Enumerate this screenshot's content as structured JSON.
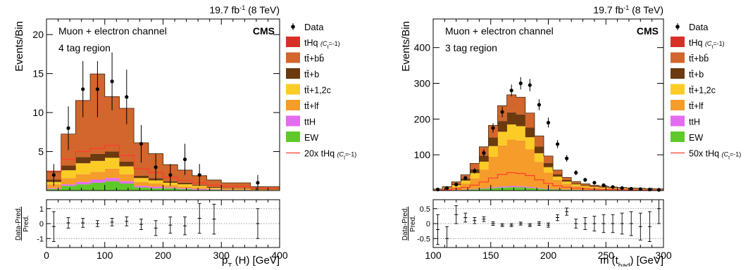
{
  "colors": {
    "tHq": "#d73027",
    "ttbb": "#d2662c",
    "ttb": "#6b3a10",
    "ttc": "#fbcc25",
    "ttlf": "#f59c2a",
    "ttH": "#e46cf1",
    "EW": "#5fc92a",
    "signal_line": "#ff3b2f",
    "data": "#000000"
  },
  "chart_data": [
    {
      "type": "area",
      "subtype": "stacked-histogram",
      "lumi_label": "19.7 fb",
      "lumi_sup": "-1",
      "lumi_energy": " (8 TeV)",
      "channel": "Muon + electron channel",
      "region": "4 tag region",
      "experiment": "CMS",
      "ylabel": "Events/Bin",
      "xlabel_main": "p",
      "xlabel_sub": "T",
      "xlabel_rest": " (H) [GeV]",
      "ratio_ylabel_num": "Data-Pred.",
      "ratio_ylabel_den": "Pred.",
      "xlim": [
        0,
        400
      ],
      "ylim": [
        0,
        22
      ],
      "ratio_ylim": [
        -1.6,
        1.6
      ],
      "xticks": [
        "0",
        "100",
        "200",
        "300",
        "400"
      ],
      "yticks": [
        "5",
        "10",
        "15",
        "20"
      ],
      "ratio_yticks": [
        "-1",
        "0",
        "1"
      ],
      "bin_edges": [
        0,
        25,
        50,
        75,
        100,
        125,
        150,
        175,
        200,
        225,
        250,
        275,
        300,
        350,
        400
      ],
      "series": [
        {
          "name": "EW",
          "key": "EW",
          "values": [
            0.2,
            0.6,
            0.8,
            1.0,
            1.2,
            0.9,
            0.4,
            0.3,
            0.3,
            0.2,
            0.1,
            0.1,
            0.05,
            0.03
          ]
        },
        {
          "name": "ttH",
          "key": "ttH",
          "values": [
            0.1,
            0.2,
            0.3,
            0.4,
            0.4,
            0.3,
            0.2,
            0.2,
            0.1,
            0.1,
            0.1,
            0.05,
            0.03,
            0.02
          ]
        },
        {
          "name": "tt̄+lf",
          "key": "ttlf",
          "values": [
            0.5,
            0.8,
            1.0,
            1.0,
            1.2,
            0.9,
            0.5,
            0.4,
            0.3,
            0.2,
            0.2,
            0.1,
            0.05,
            0.03
          ]
        },
        {
          "name": "tt̄+1,2c",
          "key": "ttc",
          "values": [
            0.3,
            1.0,
            1.4,
            1.4,
            1.4,
            1.0,
            0.5,
            0.4,
            0.3,
            0.3,
            0.2,
            0.1,
            0.1,
            0.05
          ]
        },
        {
          "name": "tt̄+b",
          "key": "ttb",
          "values": [
            0.3,
            0.6,
            0.8,
            0.9,
            0.8,
            0.6,
            0.3,
            0.3,
            0.2,
            0.2,
            0.1,
            0.1,
            0.05,
            0.05
          ]
        },
        {
          "name": "tt̄+bb̄",
          "key": "ttbb",
          "values": [
            1.0,
            4.0,
            7.2,
            10.2,
            7.0,
            6.8,
            4.2,
            3.1,
            2.1,
            1.6,
            1.2,
            0.9,
            0.7,
            0.3
          ]
        },
        {
          "name": "tHq (C",
          "name_sub": "t",
          "name_rest": "=-1)",
          "key": "tHq",
          "values": [
            0.02,
            0.05,
            0.05,
            0.05,
            0.05,
            0.05,
            0.03,
            0.03,
            0.02,
            0.02,
            0.01,
            0.01,
            0.01,
            0.01
          ]
        }
      ],
      "signal": {
        "name": "20x tHq (C",
        "name_sub": "t",
        "name_rest": "=-1)",
        "values": [
          2.5,
          4.0,
          5.0,
          5.4,
          5.8,
          4.5,
          2.8,
          2.3,
          1.7,
          1.3,
          1.0,
          0.7,
          0.5,
          0.3
        ]
      },
      "data_points": {
        "x": [
          12.5,
          37.5,
          62.5,
          87.5,
          112.5,
          137.5,
          162.5,
          187.5,
          212.5,
          237.5,
          262.5,
          287.5,
          362.5
        ],
        "y": [
          2,
          8,
          13,
          13,
          14,
          12,
          6,
          3,
          2,
          4,
          2,
          0,
          1
        ],
        "err": [
          1.4,
          2.8,
          3.6,
          3.6,
          3.7,
          3.5,
          2.4,
          1.7,
          1.4,
          2.0,
          1.4,
          0,
          1.0
        ]
      },
      "ratio_points": {
        "x": [
          12.5,
          37.5,
          62.5,
          87.5,
          112.5,
          137.5,
          162.5,
          187.5,
          212.5,
          237.5,
          262.5,
          287.5,
          362.5
        ],
        "y": [
          -0.2,
          0.05,
          0.05,
          0.0,
          0.1,
          0.15,
          -0.05,
          -0.3,
          -0.1,
          -0.15,
          0.35,
          0.3,
          0.0
        ],
        "err": [
          1.0,
          0.35,
          0.3,
          0.2,
          0.25,
          0.3,
          0.35,
          0.5,
          0.55,
          0.6,
          1.0,
          1.0,
          1.0
        ]
      }
    },
    {
      "type": "area",
      "subtype": "stacked-histogram",
      "lumi_label": "19.7 fb",
      "lumi_sup": "-1",
      "lumi_energy": " (8 TeV)",
      "channel": "Muon + electron channel",
      "region": "3 tag region",
      "experiment": "CMS",
      "ylabel": "Events/Bin",
      "xlabel_main": "m (t",
      "xlabel_sub": "had",
      "xlabel_rest": ") [GeV]",
      "ratio_ylabel_num": "Data-Pred.",
      "ratio_ylabel_den": "Pred.",
      "xlim": [
        100,
        300
      ],
      "ylim": [
        0,
        480
      ],
      "ratio_ylim": [
        -0.8,
        0.8
      ],
      "xticks": [
        "100",
        "150",
        "200",
        "250",
        "300"
      ],
      "yticks": [
        "100",
        "200",
        "300",
        "400"
      ],
      "ratio_yticks": [
        "-0.5",
        "0",
        "0.5"
      ],
      "bin_edges": [
        100,
        108,
        116,
        124,
        132,
        140,
        148,
        156,
        164,
        172,
        180,
        188,
        196,
        204,
        212,
        220,
        228,
        236,
        244,
        252,
        260,
        268,
        276,
        284,
        292,
        300
      ],
      "series": [
        {
          "name": "EW",
          "key": "EW",
          "values": [
            0.3,
            0.6,
            1.2,
            2,
            3.5,
            5,
            7,
            8.5,
            9.5,
            9,
            7.5,
            5.5,
            4,
            3,
            2.3,
            1.8,
            1.4,
            1.1,
            0.9,
            0.7,
            0.6,
            0.5,
            0.4,
            0.35,
            0.3
          ]
        },
        {
          "name": "ttH",
          "key": "ttH",
          "values": [
            0.1,
            0.2,
            0.4,
            0.8,
            1.2,
            1.8,
            2.4,
            3,
            3.3,
            3.1,
            2.6,
            1.9,
            1.3,
            0.9,
            0.7,
            0.5,
            0.4,
            0.3,
            0.25,
            0.2,
            0.18,
            0.15,
            0.12,
            0.1,
            0.1
          ]
        },
        {
          "name": "tt̄+lf",
          "key": "ttlf",
          "values": [
            1.5,
            4,
            9,
            17,
            30,
            52,
            85,
            115,
            130,
            128,
            105,
            73,
            45,
            26,
            16,
            11,
            8,
            6,
            5,
            4,
            3.5,
            3,
            2.5,
            2.2,
            2
          ]
        },
        {
          "name": "tt̄+1,2c",
          "key": "ttc",
          "values": [
            0.8,
            2,
            4.5,
            8,
            14,
            22,
            30,
            38,
            42,
            40,
            34,
            24,
            15,
            9,
            6,
            4,
            3,
            2.4,
            2,
            1.7,
            1.4,
            1.2,
            1,
            0.9,
            0.8
          ]
        },
        {
          "name": "tt̄+b",
          "key": "ttb",
          "values": [
            0.6,
            1.5,
            3.5,
            6,
            11,
            17,
            24,
            30,
            34,
            33,
            27,
            19,
            12,
            7,
            4.5,
            3,
            2.2,
            1.8,
            1.5,
            1.2,
            1,
            0.9,
            0.8,
            0.7,
            0.6
          ]
        },
        {
          "name": "tt̄+bb̄",
          "key": "ttbb",
          "values": [
            1,
            2.5,
            5.5,
            10,
            16,
            24,
            33,
            42,
            48,
            47,
            40,
            29,
            19,
            11,
            7,
            5,
            3.8,
            3,
            2.5,
            2.1,
            1.8,
            1.6,
            1.4,
            1.2,
            1.1
          ]
        },
        {
          "name": "tHq (C",
          "name_sub": "t",
          "name_rest": "=-1)",
          "key": "tHq",
          "values": [
            0.02,
            0.05,
            0.1,
            0.2,
            0.3,
            0.5,
            0.7,
            0.9,
            1.0,
            1.0,
            0.8,
            0.6,
            0.4,
            0.25,
            0.15,
            0.1,
            0.08,
            0.06,
            0.05,
            0.04,
            0.03,
            0.03,
            0.02,
            0.02,
            0.02
          ]
        }
      ],
      "signal": {
        "name": "50x tHq (C",
        "name_sub": "t",
        "name_rest": "=-1)",
        "values": [
          1,
          2.5,
          5,
          9,
          15,
          24,
          35,
          45,
          50,
          48,
          42,
          30,
          20,
          13,
          9,
          6.5,
          5,
          4,
          3.3,
          2.8,
          2.4,
          2.1,
          1.8,
          1.6,
          1.4
        ]
      },
      "data_points": {
        "x": [
          104,
          112,
          120,
          128,
          136,
          144,
          152,
          160,
          168,
          176,
          184,
          192,
          200,
          208,
          216,
          224,
          232,
          240,
          248,
          256,
          264,
          272,
          280,
          288,
          296
        ],
        "y": [
          3,
          7,
          17,
          35,
          55,
          105,
          175,
          220,
          280,
          300,
          295,
          240,
          190,
          130,
          90,
          50,
          30,
          22,
          15,
          10,
          7,
          5,
          4,
          3,
          2
        ],
        "err": [
          1.7,
          2.6,
          4.1,
          5.9,
          7.4,
          10.2,
          13.2,
          14.8,
          16.7,
          17.3,
          17.2,
          15.5,
          13.8,
          11.4,
          9.5,
          7.1,
          5.5,
          4.7,
          3.9,
          3.2,
          2.6,
          2.2,
          2,
          1.7,
          1.4
        ]
      },
      "ratio_points": {
        "x": [
          104,
          112,
          120,
          128,
          136,
          144,
          152,
          160,
          168,
          176,
          184,
          192,
          200,
          208,
          216,
          224,
          232,
          240,
          248,
          256,
          264,
          272,
          280,
          288,
          296
        ],
        "y": [
          -0.2,
          -0.5,
          0.3,
          0.2,
          0.1,
          0.15,
          0.0,
          -0.05,
          -0.05,
          0.0,
          -0.05,
          0.0,
          -0.05,
          0.2,
          0.4,
          0.0,
          0.0,
          0.0,
          0.0,
          0.0,
          0.0,
          0.0,
          -0.1,
          -0.1,
          0.5
        ],
        "err": [
          0.5,
          0.4,
          0.3,
          0.15,
          0.1,
          0.08,
          0.06,
          0.05,
          0.05,
          0.05,
          0.05,
          0.06,
          0.07,
          0.1,
          0.12,
          0.15,
          0.2,
          0.25,
          0.3,
          0.3,
          0.35,
          0.4,
          0.45,
          0.5,
          0.5
        ]
      }
    }
  ]
}
